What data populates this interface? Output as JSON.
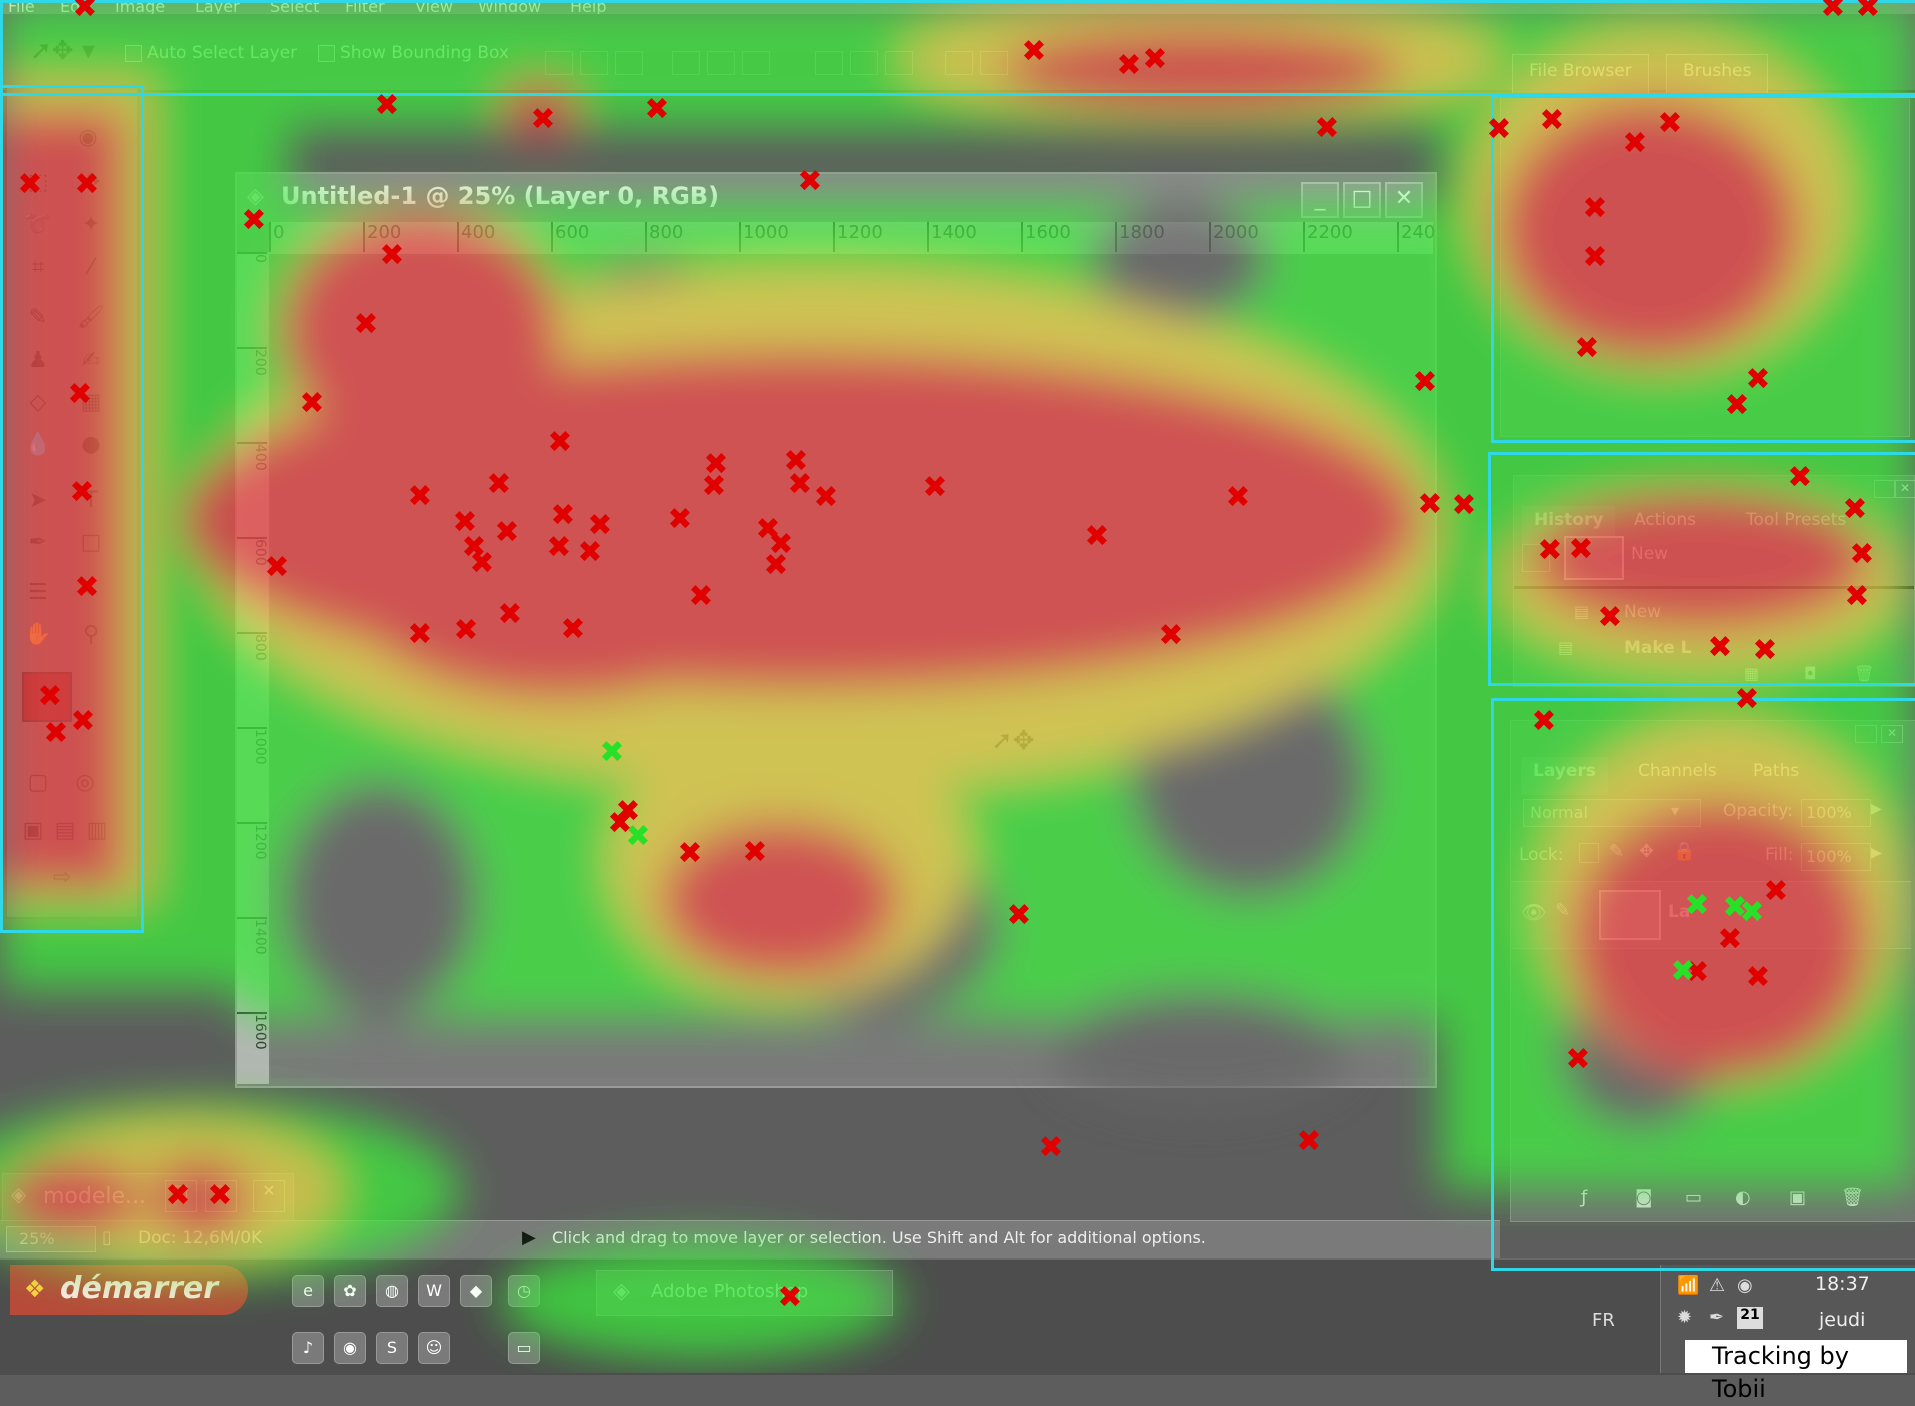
{
  "menu": [
    "File",
    "Ed",
    "Image",
    "Layer",
    "Select",
    "Filter",
    "View",
    "Window",
    "Help"
  ],
  "options": {
    "auto_select_layer": "Auto Select Layer",
    "show_bounding_box": "Show Bounding Box",
    "palette_tabs": [
      "File Browser",
      "Brushes"
    ]
  },
  "document": {
    "title": "Untitled-1 @ 25% (Layer 0, RGB)",
    "ruler_h": [
      "0",
      "200",
      "400",
      "600",
      "800",
      "1000",
      "1200",
      "1400",
      "1600",
      "1800",
      "2000",
      "2200",
      "240"
    ],
    "ruler_v": [
      "0",
      "200",
      "400",
      "600",
      "800",
      "1000",
      "1200",
      "1400",
      "1600"
    ]
  },
  "minimized_window": {
    "title": "modele..."
  },
  "status": {
    "zoom": "25%",
    "doc": "Doc: 12,6M/0K",
    "hint": "Click and drag to move layer or selection.  Use Shift and Alt for additional options."
  },
  "history_panel": {
    "tabs": [
      "History",
      "Actions",
      "Tool Presets"
    ],
    "snapshot_label": "New",
    "items": [
      "New",
      "Make L"
    ]
  },
  "layers_panel": {
    "tabs": [
      "Layers",
      "Channels",
      "Paths"
    ],
    "blend_mode": "Normal",
    "opacity_label": "Opacity:",
    "opacity_value": "100%",
    "lock_label": "Lock:",
    "fill_label": "Fill:",
    "fill_value": "100%",
    "layer_name": "La"
  },
  "taskbar": {
    "start": "démarrer",
    "task": "Adobe Photoshop",
    "lang": "FR",
    "time": "18:37",
    "day": "jeudi",
    "date": "21"
  },
  "credit": "Tracking by Tobii",
  "colors": {
    "heat_red": "#e84a4a",
    "heat_yellow": "#e8d84a",
    "heat_green": "#3ee63e",
    "aoi": "#2fd8e6"
  }
}
